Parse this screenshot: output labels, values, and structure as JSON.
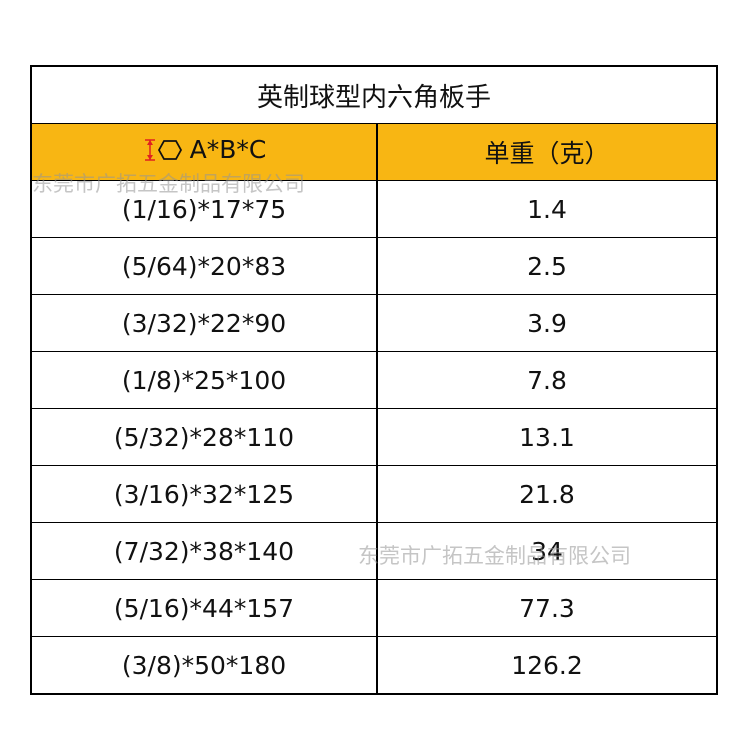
{
  "title": "英制球型内六角板手",
  "columns": [
    "A*B*C",
    "单重（克）"
  ],
  "rows": [
    {
      "size": "(1/16)*17*75",
      "weight": "1.4"
    },
    {
      "size": "(5/64)*20*83",
      "weight": "2.5"
    },
    {
      "size": "(3/32)*22*90",
      "weight": "3.9"
    },
    {
      "size": "(1/8)*25*100",
      "weight": "7.8"
    },
    {
      "size": "(5/32)*28*110",
      "weight": "13.1"
    },
    {
      "size": "(3/16)*32*125",
      "weight": "21.8"
    },
    {
      "size": "(7/32)*38*140",
      "weight": "34"
    },
    {
      "size": "(5/16)*44*157",
      "weight": "77.3"
    },
    {
      "size": "(3/8)*50*180",
      "weight": "126.2"
    }
  ],
  "watermark": "东莞市广拓五金制品有限公司",
  "colors": {
    "header_bg": "#f8b613",
    "dimension_icon": "#e02020"
  },
  "icons": [
    "dimension-arrow-icon",
    "hexagon-icon"
  ]
}
